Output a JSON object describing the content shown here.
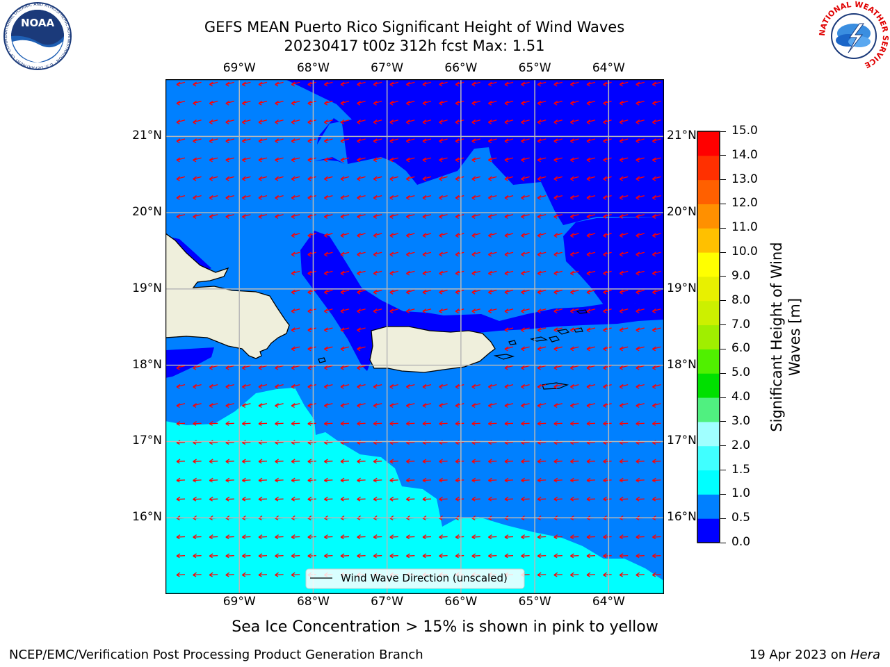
{
  "title_line1": "GEFS MEAN Puerto Rico Significant Height of Wind Waves",
  "title_line2": "20230417 t00z 312h fcst   Max: 1.51",
  "subnote": "Sea Ice Concentration > 15% is shown in pink to yellow",
  "footer_left": "NCEP/EMC/Verification Post Processing Product Generation Branch",
  "footer_right_prefix": "19 Apr 2023 on ",
  "footer_right_host": "Hera",
  "legend_label": "Wind Wave Direction (unscaled)",
  "logos": {
    "noaa": "NOAA",
    "noaa_ring": "NATIONAL OCEANIC AND ATMOSPHERIC ADMINISTRATION · U.S. DEPARTMENT OF COMMERCE",
    "nws_ring": "NATIONAL WEATHER SERVICE"
  },
  "colorbar": {
    "label": "Significant Height of Wind Waves [m]",
    "ticks": [
      "0.0",
      "0.5",
      "1.0",
      "1.5",
      "2.0",
      "3.0",
      "4.0",
      "5.0",
      "6.0",
      "7.0",
      "8.0",
      "9.0",
      "10.0",
      "11.0",
      "12.0",
      "13.0",
      "14.0",
      "15.0"
    ],
    "colors": [
      "#0000ff",
      "#0080ff",
      "#00ffff",
      "#40ffff",
      "#a0ffff",
      "#50f080",
      "#00e000",
      "#50f000",
      "#a0ee00",
      "#ccf000",
      "#e8f000",
      "#ffff00",
      "#ffc000",
      "#ff9000",
      "#ff6000",
      "#ff3000",
      "#ff0000"
    ]
  },
  "chart_data": {
    "type": "map",
    "title": "GEFS MEAN Puerto Rico Significant Height of Wind Waves",
    "subtitle": "20230417 t00z 312h fcst   Max: 1.51",
    "lon_ticks": [
      -69,
      -68,
      -67,
      -66,
      -65,
      -64
    ],
    "lat_ticks": [
      16,
      17,
      18,
      19,
      20,
      21
    ],
    "lon_labels": [
      "69°W",
      "68°W",
      "67°W",
      "66°W",
      "65°W",
      "64°W"
    ],
    "lat_labels": [
      "16°N",
      "17°N",
      "18°N",
      "19°N",
      "20°N",
      "21°N"
    ],
    "lon_range": [
      -70.0,
      -63.25
    ],
    "lat_range": [
      15.0,
      21.75
    ],
    "grid": true,
    "max_value": 1.51,
    "units": "m",
    "vector_field": "Wind Wave Direction (unscaled)",
    "wind_direction": "from east-northeast"
  }
}
